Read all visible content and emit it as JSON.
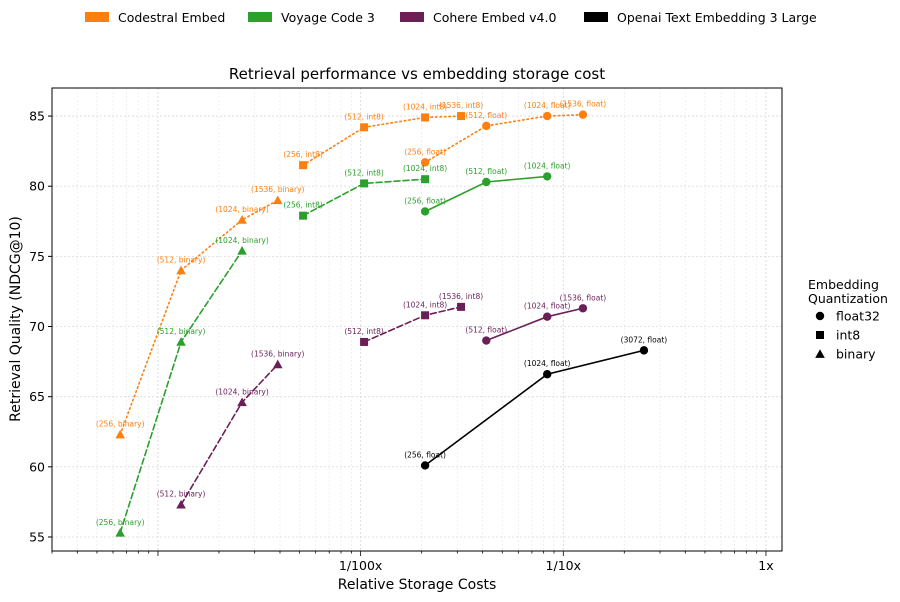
{
  "chart_data": {
    "type": "line",
    "title": "Retrieval performance vs embedding storage cost",
    "xlabel": "Relative Storage Costs",
    "ylabel": "Retrieval Quality (NDCG@10)",
    "x_scale": "log",
    "xlim": [
      0.0003,
      1.2
    ],
    "ylim": [
      54,
      87
    ],
    "x_ticks": [
      {
        "value": 0.01,
        "label": "1/100x"
      },
      {
        "value": 0.1,
        "label": "1/10x"
      },
      {
        "value": 1,
        "label": "1x"
      }
    ],
    "y_ticks": [
      55,
      60,
      65,
      70,
      75,
      80,
      85
    ],
    "grid": true,
    "legend_top": {
      "placement": "top",
      "entries": [
        {
          "label": "Codestral Embed",
          "color": "#ff7f0e"
        },
        {
          "label": "Voyage Code 3",
          "color": "#2ca02c"
        },
        {
          "label": "Cohere Embed v4.0",
          "color": "#6b1f57"
        },
        {
          "label": "Openai Text Embedding 3 Large",
          "color": "#000000"
        }
      ]
    },
    "legend_right": {
      "placement": "right",
      "title_line1": "Embedding",
      "title_line2": "Quantization",
      "entries": [
        {
          "label": "float32",
          "marker": "circle"
        },
        {
          "label": "int8",
          "marker": "square"
        },
        {
          "label": "binary",
          "marker": "triangle"
        }
      ]
    },
    "series": [
      {
        "name": "Codestral Embed",
        "quantization": "binary",
        "color": "#ff7f0e",
        "dash": "dotted",
        "marker": "triangle",
        "points": [
          {
            "x": 0.000651,
            "y": 62.3,
            "label": "(256, binary)"
          },
          {
            "x": 0.0013,
            "y": 74.0,
            "label": "(512, binary)"
          },
          {
            "x": 0.0026,
            "y": 77.6,
            "label": "(1024, binary)"
          },
          {
            "x": 0.0039,
            "y": 79.0,
            "label": "(1536, binary)"
          }
        ]
      },
      {
        "name": "Codestral Embed",
        "quantization": "int8",
        "color": "#ff7f0e",
        "dash": "dotted",
        "marker": "square",
        "points": [
          {
            "x": 0.0052,
            "y": 81.5,
            "label": "(256, int8)"
          },
          {
            "x": 0.0104,
            "y": 84.2,
            "label": "(512, int8)"
          },
          {
            "x": 0.0208,
            "y": 84.9,
            "label": "(1024, int8)"
          },
          {
            "x": 0.0313,
            "y": 85.0,
            "label": "(1536, int8)"
          }
        ]
      },
      {
        "name": "Codestral Embed",
        "quantization": "float32",
        "color": "#ff7f0e",
        "dash": "dotted",
        "marker": "circle",
        "points": [
          {
            "x": 0.0208,
            "y": 81.7,
            "label": "(256, float)"
          },
          {
            "x": 0.0417,
            "y": 84.3,
            "label": "(512, float)"
          },
          {
            "x": 0.0833,
            "y": 85.0,
            "label": "(1024, float)"
          },
          {
            "x": 0.125,
            "y": 85.1,
            "label": "(1536, float)"
          }
        ]
      },
      {
        "name": "Voyage Code 3",
        "quantization": "binary",
        "color": "#2ca02c",
        "dash": "dashed",
        "marker": "triangle",
        "points": [
          {
            "x": 0.000651,
            "y": 55.3,
            "label": "(256, binary)"
          },
          {
            "x": 0.0013,
            "y": 68.9,
            "label": "(512, binary)"
          },
          {
            "x": 0.0026,
            "y": 75.4,
            "label": "(1024, binary)"
          }
        ]
      },
      {
        "name": "Voyage Code 3",
        "quantization": "int8",
        "color": "#2ca02c",
        "dash": "dashed",
        "marker": "square",
        "points": [
          {
            "x": 0.0052,
            "y": 77.9,
            "label": "(256, int8)"
          },
          {
            "x": 0.0104,
            "y": 80.2,
            "label": "(512, int8)"
          },
          {
            "x": 0.0208,
            "y": 80.5,
            "label": "(1024, int8)"
          }
        ]
      },
      {
        "name": "Voyage Code 3",
        "quantization": "float32",
        "color": "#2ca02c",
        "dash": "solid",
        "marker": "circle",
        "points": [
          {
            "x": 0.0208,
            "y": 78.2,
            "label": "(256, float)"
          },
          {
            "x": 0.0417,
            "y": 80.3,
            "label": "(512, float)"
          },
          {
            "x": 0.0833,
            "y": 80.7,
            "label": "(1024, float)"
          }
        ]
      },
      {
        "name": "Cohere Embed v4.0",
        "quantization": "binary",
        "color": "#6b1f57",
        "dash": "dashed",
        "marker": "triangle",
        "points": [
          {
            "x": 0.0013,
            "y": 57.3,
            "label": "(512, binary)"
          },
          {
            "x": 0.0026,
            "y": 64.6,
            "label": "(1024, binary)"
          },
          {
            "x": 0.0039,
            "y": 67.3,
            "label": "(1536, binary)"
          }
        ]
      },
      {
        "name": "Cohere Embed v4.0",
        "quantization": "int8",
        "color": "#6b1f57",
        "dash": "dashed",
        "marker": "square",
        "points": [
          {
            "x": 0.0104,
            "y": 68.9,
            "label": "(512, int8)"
          },
          {
            "x": 0.0208,
            "y": 70.8,
            "label": "(1024, int8)"
          },
          {
            "x": 0.0313,
            "y": 71.4,
            "label": "(1536, int8)"
          }
        ]
      },
      {
        "name": "Cohere Embed v4.0",
        "quantization": "float32",
        "color": "#6b1f57",
        "dash": "solid",
        "marker": "circle",
        "points": [
          {
            "x": 0.0417,
            "y": 69.0,
            "label": "(512, float)"
          },
          {
            "x": 0.0833,
            "y": 70.7,
            "label": "(1024, float)"
          },
          {
            "x": 0.125,
            "y": 71.3,
            "label": "(1536, float)"
          }
        ]
      },
      {
        "name": "Openai Text Embedding 3 Large",
        "quantization": "float32",
        "color": "#000000",
        "dash": "solid",
        "marker": "circle",
        "points": [
          {
            "x": 0.0208,
            "y": 60.1,
            "label": "(256, float)"
          },
          {
            "x": 0.0833,
            "y": 66.6,
            "label": "(1024, float)"
          },
          {
            "x": 0.25,
            "y": 68.3,
            "label": "(3072, float)"
          }
        ]
      }
    ]
  }
}
